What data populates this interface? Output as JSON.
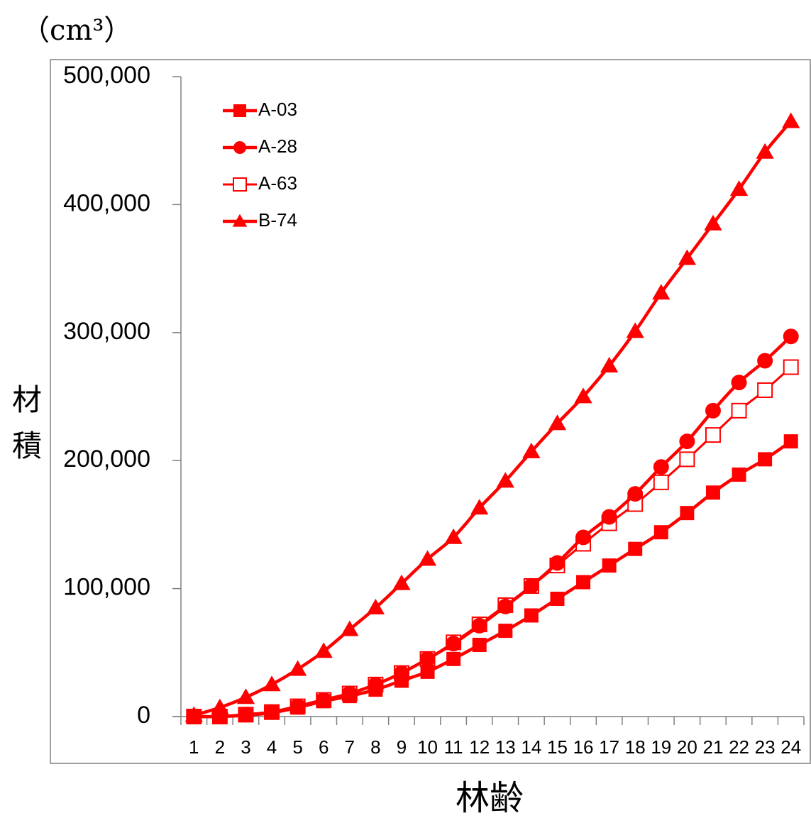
{
  "chart_data": {
    "type": "line",
    "title": "",
    "unit_label": "（cm³）",
    "ylabel": "材積",
    "xlabel": "林齢",
    "x": [
      1,
      2,
      3,
      4,
      5,
      6,
      7,
      8,
      9,
      10,
      11,
      12,
      13,
      14,
      15,
      16,
      17,
      18,
      19,
      20,
      21,
      22,
      23,
      24
    ],
    "ylim": [
      0,
      500000
    ],
    "yticks": [
      0,
      100000,
      200000,
      300000,
      400000,
      500000
    ],
    "ytick_labels": [
      "0",
      "100,000",
      "200,000",
      "300,000",
      "400,000",
      "500,000"
    ],
    "grid": false,
    "legend_position": "top-left",
    "series": [
      {
        "name": "A-03",
        "marker": "filled-square",
        "color": "#ff0000",
        "values": [
          0,
          0,
          1000,
          3000,
          7000,
          12000,
          16000,
          21000,
          28000,
          35000,
          45000,
          56000,
          67000,
          79000,
          92000,
          105000,
          118000,
          131000,
          144000,
          159000,
          175000,
          189000,
          201000,
          215000
        ]
      },
      {
        "name": "A-28",
        "marker": "filled-circle",
        "color": "#ff0000",
        "values": [
          0,
          0,
          1500,
          3500,
          8000,
          13000,
          18000,
          25000,
          34000,
          45000,
          57000,
          71000,
          86000,
          102000,
          120000,
          140000,
          156000,
          174000,
          195000,
          215000,
          239000,
          261000,
          278000,
          297000
        ]
      },
      {
        "name": "A-63",
        "marker": "open-square",
        "color": "#ff0000",
        "values": [
          0,
          0,
          1500,
          3500,
          8000,
          13000,
          18000,
          25000,
          34000,
          45000,
          58000,
          72000,
          87000,
          102000,
          118000,
          135000,
          151000,
          166000,
          183000,
          201000,
          220000,
          239000,
          255000,
          273000
        ]
      },
      {
        "name": "B-74",
        "marker": "filled-triangle",
        "color": "#ff0000",
        "values": [
          1000,
          7000,
          15000,
          25000,
          37000,
          51000,
          68000,
          85000,
          104000,
          123000,
          140000,
          163000,
          184000,
          207000,
          229000,
          250000,
          274000,
          301000,
          331000,
          358000,
          385000,
          412000,
          441000,
          465000
        ]
      }
    ]
  }
}
